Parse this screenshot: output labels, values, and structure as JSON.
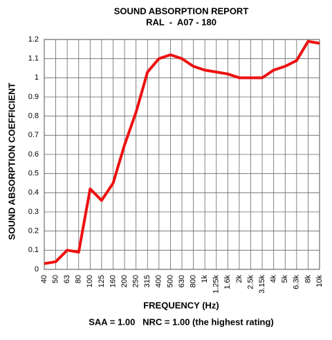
{
  "chart_data": {
    "type": "line",
    "title": "SOUND ABSORPTION REPORT",
    "subtitle": "RAL  -  A07 - 180",
    "x_label": "FREQUENCY (Hz)",
    "y_label": "SOUND ABSORPTION COEFFICIENT",
    "footer": "SAA = 1.00   NRC = 1.00 (the highest rating)",
    "categories": [
      "40",
      "50",
      "63",
      "80",
      "100",
      "125",
      "160",
      "200",
      "250",
      "315",
      "400",
      "500",
      "630",
      "800",
      "1k",
      "1.25k",
      "1.6k",
      "2k",
      "2.5k",
      "3.15k",
      "4k",
      "5k",
      "6.3k",
      "8k",
      "10k"
    ],
    "values": [
      0.03,
      0.04,
      0.1,
      0.09,
      0.42,
      0.36,
      0.45,
      0.65,
      0.82,
      1.03,
      1.1,
      1.12,
      1.1,
      1.06,
      1.04,
      1.03,
      1.02,
      1.0,
      1.0,
      1.0,
      1.04,
      1.06,
      1.09,
      1.19,
      1.18
    ],
    "color": "#ee1111",
    "ylim": [
      0,
      1.2
    ],
    "yticks": [
      0,
      0.1,
      0.2,
      0.3,
      0.4,
      0.5,
      0.6,
      0.7,
      0.8,
      0.9,
      1,
      1.1,
      1.2
    ],
    "grid": true
  }
}
